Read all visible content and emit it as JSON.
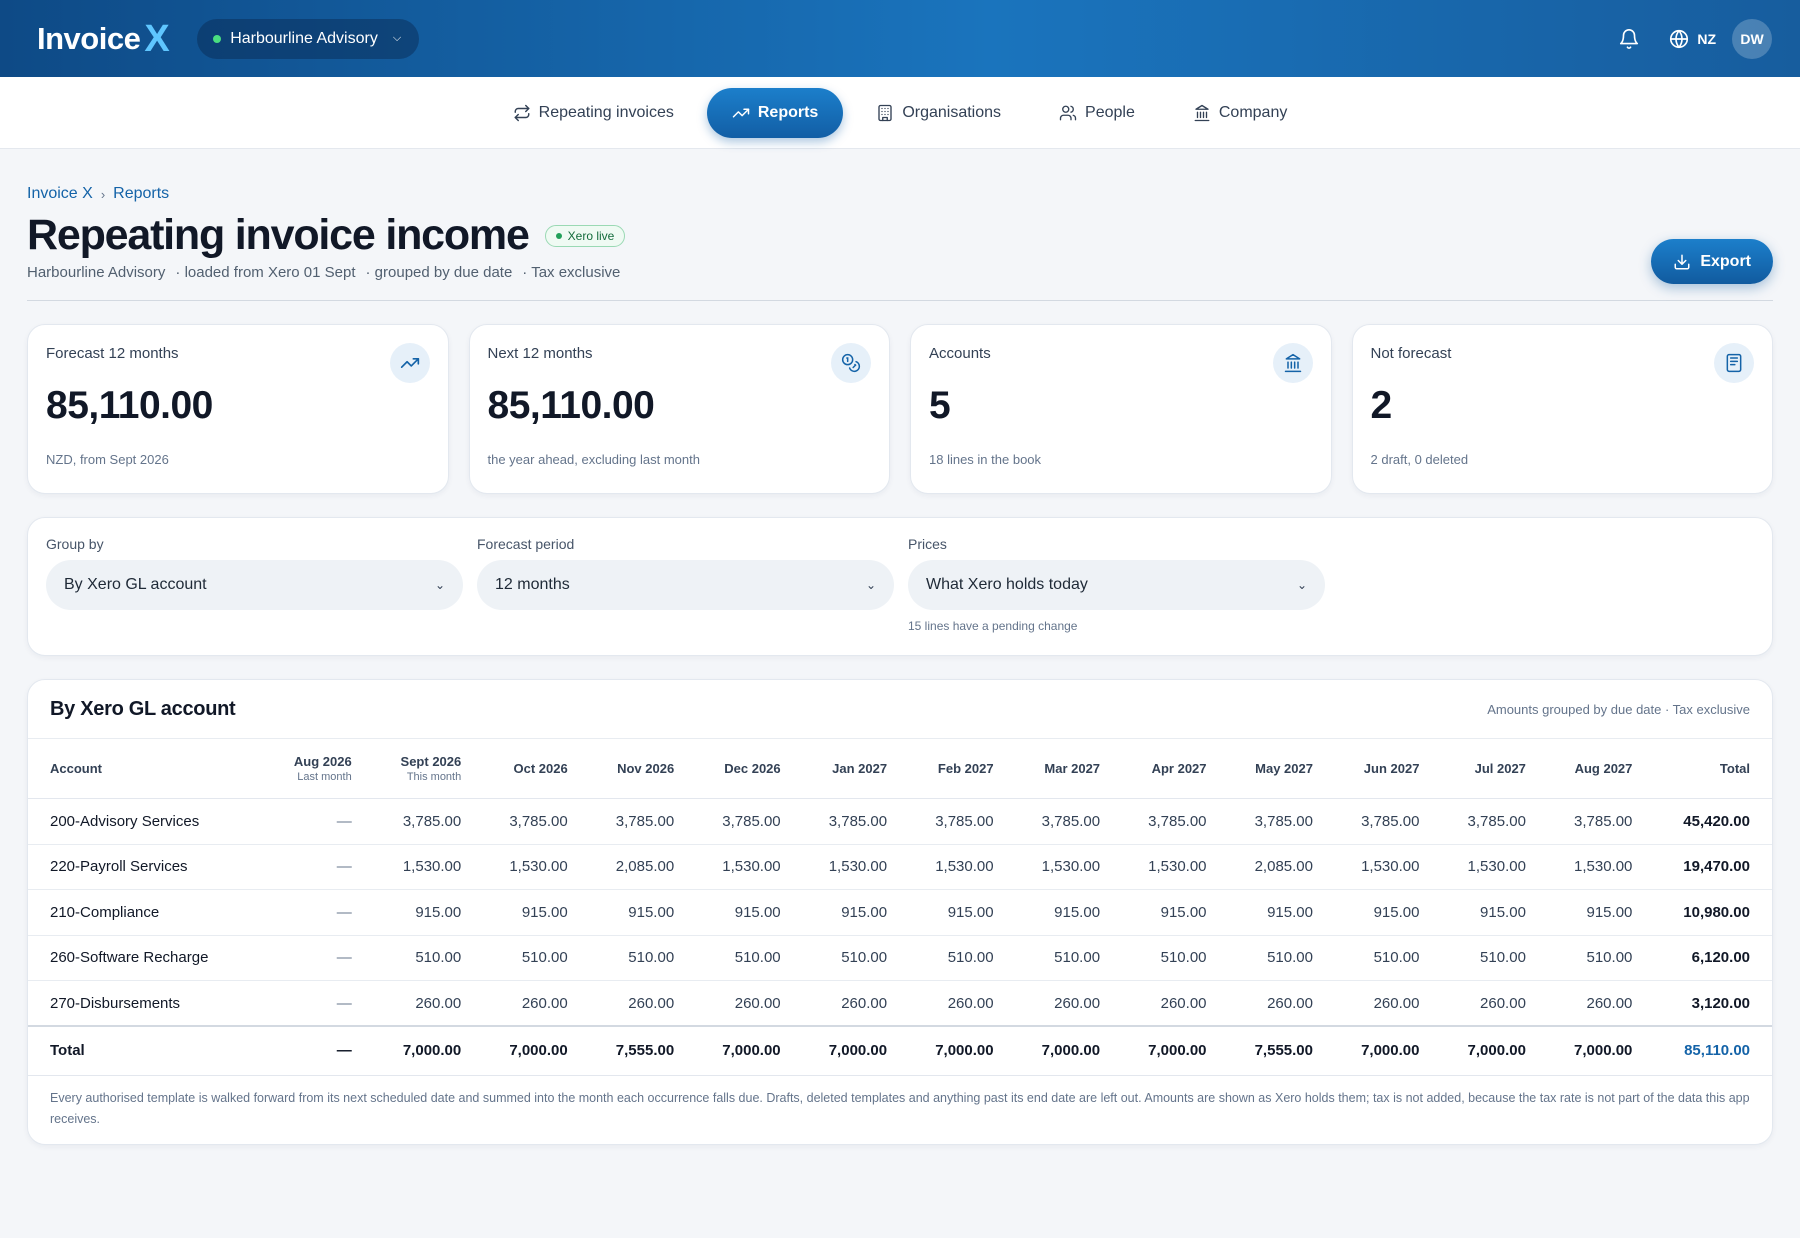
{
  "app": {
    "logo_text": "Invoice",
    "logo_mark": "X",
    "organisation": "Harbourline Advisory",
    "region": "NZ",
    "user_initials": "DW"
  },
  "nav": [
    {
      "label": "Repeating invoices",
      "icon": "repeat-icon",
      "active": false
    },
    {
      "label": "Reports",
      "icon": "trending-up-icon",
      "active": true
    },
    {
      "label": "Organisations",
      "icon": "building-icon",
      "active": false
    },
    {
      "label": "People",
      "icon": "people-icon",
      "active": false
    },
    {
      "label": "Company",
      "icon": "bank-icon",
      "active": false
    }
  ],
  "breadcrumb": [
    "Invoice X",
    "Reports"
  ],
  "page": {
    "title": "Repeating invoice income",
    "badge": "Xero live",
    "subtitle": [
      "Harbourline Advisory",
      "· loaded from Xero 01 Sept",
      "· grouped by due date",
      "· Tax exclusive"
    ],
    "export_label": "Export"
  },
  "cards": [
    {
      "label": "Forecast 12 months",
      "value": "85,110.00",
      "note": "NZD, from Sept 2026",
      "icon": "trending-up-icon"
    },
    {
      "label": "Next 12 months",
      "value": "85,110.00",
      "note": "the year ahead, excluding last month",
      "icon": "coins-icon"
    },
    {
      "label": "Accounts",
      "value": "5",
      "note": "18 lines in the book",
      "icon": "bank-icon"
    },
    {
      "label": "Not forecast",
      "value": "2",
      "note": "2 draft, 0 deleted",
      "icon": "document-icon"
    }
  ],
  "filters": {
    "group_by": {
      "label": "Group by",
      "value": "By Xero GL account"
    },
    "period": {
      "label": "Forecast period",
      "value": "12 months"
    },
    "prices": {
      "label": "Prices",
      "value": "What Xero holds today",
      "hint": "15 lines have a pending change"
    }
  },
  "table": {
    "title": "By Xero GL account",
    "meta": "Amounts grouped by due date · Tax exclusive",
    "columns": [
      {
        "label": "Account",
        "sub": ""
      },
      {
        "label": "Aug 2026",
        "sub": "Last month"
      },
      {
        "label": "Sept 2026",
        "sub": "This month"
      },
      {
        "label": "Oct 2026",
        "sub": ""
      },
      {
        "label": "Nov 2026",
        "sub": ""
      },
      {
        "label": "Dec 2026",
        "sub": ""
      },
      {
        "label": "Jan 2027",
        "sub": ""
      },
      {
        "label": "Feb 2027",
        "sub": ""
      },
      {
        "label": "Mar 2027",
        "sub": ""
      },
      {
        "label": "Apr 2027",
        "sub": ""
      },
      {
        "label": "May 2027",
        "sub": ""
      },
      {
        "label": "Jun 2027",
        "sub": ""
      },
      {
        "label": "Jul 2027",
        "sub": ""
      },
      {
        "label": "Aug 2027",
        "sub": ""
      },
      {
        "label": "Total",
        "sub": ""
      }
    ],
    "rows": [
      [
        "200-Advisory Services",
        "—",
        "3,785.00",
        "3,785.00",
        "3,785.00",
        "3,785.00",
        "3,785.00",
        "3,785.00",
        "3,785.00",
        "3,785.00",
        "3,785.00",
        "3,785.00",
        "3,785.00",
        "3,785.00",
        "45,420.00"
      ],
      [
        "220-Payroll Services",
        "—",
        "1,530.00",
        "1,530.00",
        "2,085.00",
        "1,530.00",
        "1,530.00",
        "1,530.00",
        "1,530.00",
        "1,530.00",
        "2,085.00",
        "1,530.00",
        "1,530.00",
        "1,530.00",
        "19,470.00"
      ],
      [
        "210-Compliance",
        "—",
        "915.00",
        "915.00",
        "915.00",
        "915.00",
        "915.00",
        "915.00",
        "915.00",
        "915.00",
        "915.00",
        "915.00",
        "915.00",
        "915.00",
        "10,980.00"
      ],
      [
        "260-Software Recharge",
        "—",
        "510.00",
        "510.00",
        "510.00",
        "510.00",
        "510.00",
        "510.00",
        "510.00",
        "510.00",
        "510.00",
        "510.00",
        "510.00",
        "510.00",
        "6,120.00"
      ],
      [
        "270-Disbursements",
        "—",
        "260.00",
        "260.00",
        "260.00",
        "260.00",
        "260.00",
        "260.00",
        "260.00",
        "260.00",
        "260.00",
        "260.00",
        "260.00",
        "260.00",
        "3,120.00"
      ]
    ],
    "total_row": [
      "Total",
      "—",
      "7,000.00",
      "7,000.00",
      "7,555.00",
      "7,000.00",
      "7,000.00",
      "7,000.00",
      "7,000.00",
      "7,000.00",
      "7,555.00",
      "7,000.00",
      "7,000.00",
      "7,000.00",
      "85,110.00"
    ],
    "footnote": "Every authorised template is walked forward from its next scheduled date and summed into the month each occurrence falls due. Drafts, deleted templates and anything past its end date are left out. Amounts are shown as Xero holds them; tax is not added, because the tax rate is not part of the data this app receives."
  },
  "colors": {
    "brand": "#1463a8",
    "brand_gradient_start": "#0e4a86",
    "accent": "#5fc6ff",
    "live": "#22a05a"
  }
}
